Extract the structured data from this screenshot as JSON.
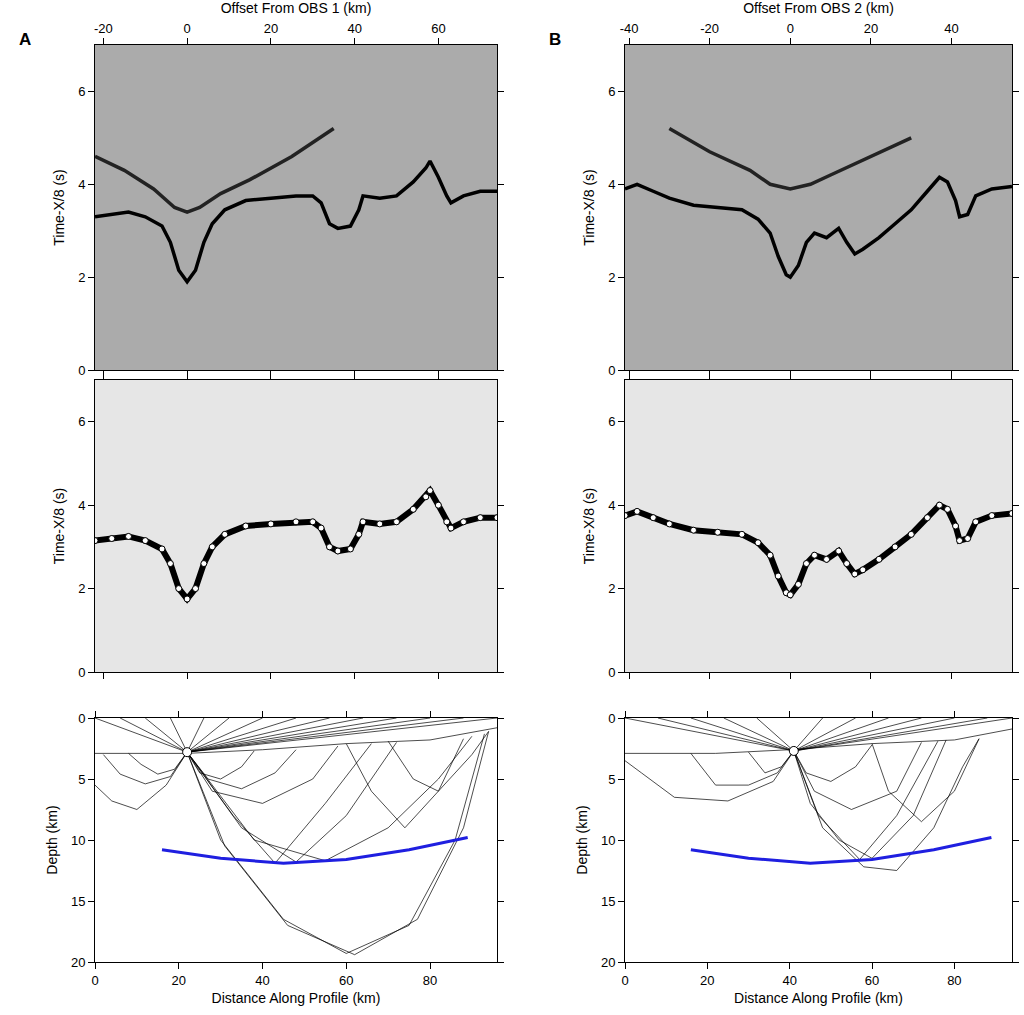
{
  "chart_data": [
    {
      "type": "line",
      "title": "A",
      "x_label": "Offset From OBS 1 (km)",
      "y_label": "Time-X/8 (s)",
      "xlim": [
        -22,
        74
      ],
      "xticks": [
        -20,
        0,
        20,
        40,
        60
      ],
      "ylim": [
        0,
        7
      ],
      "yticks": [
        0,
        2,
        4,
        6
      ],
      "series": [
        {
          "color": "#000000",
          "line_style": "solid",
          "x": [
            -22,
            -18,
            -14,
            -10,
            -6,
            -4,
            -2,
            0,
            2,
            4,
            6,
            9,
            14,
            20,
            26,
            30,
            32,
            34,
            36,
            39,
            41,
            42,
            46,
            50,
            54,
            57,
            58,
            60,
            62,
            63,
            66,
            70,
            74
          ],
          "values": [
            3.3,
            3.35,
            3.4,
            3.3,
            3.1,
            2.75,
            2.15,
            1.9,
            2.15,
            2.75,
            3.15,
            3.45,
            3.65,
            3.7,
            3.75,
            3.75,
            3.6,
            3.15,
            3.05,
            3.1,
            3.45,
            3.75,
            3.7,
            3.75,
            4.05,
            4.35,
            4.5,
            4.15,
            3.75,
            3.6,
            3.75,
            3.85,
            3.85
          ]
        },
        {
          "color": "#222222",
          "line_style": "solid",
          "x": [
            -22,
            -15,
            -8,
            -3,
            0,
            3,
            8,
            15,
            25,
            35
          ],
          "values": [
            4.6,
            4.3,
            3.9,
            3.5,
            3.4,
            3.5,
            3.8,
            4.1,
            4.6,
            5.2
          ]
        }
      ]
    },
    {
      "type": "line",
      "x_label": null,
      "y_label": "Time-X/8 (s)",
      "tick_labels": "y",
      "xlim": [
        -22,
        74
      ],
      "xticks": [
        -20,
        0,
        20,
        40,
        60
      ],
      "ylim": [
        0,
        7
      ],
      "yticks": [
        0,
        2,
        4,
        6
      ],
      "series": [
        {
          "color": "#000000",
          "line_style": "solid",
          "marker": "circle",
          "x": [
            -22,
            -18,
            -14,
            -10,
            -6,
            -4,
            -2,
            0,
            2,
            4,
            6,
            9,
            14,
            20,
            26,
            30,
            32,
            34,
            36,
            39,
            41,
            42,
            46,
            50,
            54,
            57,
            58,
            60,
            62,
            63,
            66,
            70,
            74
          ],
          "values": [
            3.15,
            3.2,
            3.25,
            3.15,
            2.95,
            2.6,
            2.0,
            1.75,
            2.0,
            2.6,
            3.0,
            3.3,
            3.5,
            3.55,
            3.6,
            3.6,
            3.45,
            3.0,
            2.9,
            2.95,
            3.3,
            3.6,
            3.55,
            3.6,
            3.9,
            4.2,
            4.35,
            4.0,
            3.6,
            3.45,
            3.6,
            3.7,
            3.7
          ]
        }
      ]
    },
    {
      "type": "line",
      "x_label": "Distance Along Profile (km)",
      "y_label": "Depth (km)",
      "xlim": [
        0,
        96
      ],
      "xticks": [
        0,
        20,
        40,
        60,
        80
      ],
      "ylim": [
        20,
        0
      ],
      "yticks": [
        0,
        5,
        10,
        15,
        20
      ],
      "series": [
        {
          "color": "#000000",
          "line_style": "solid",
          "x": [
            22,
            0,
            null,
            22,
            6,
            null,
            22,
            12,
            null,
            22,
            18,
            null,
            22,
            26,
            null,
            22,
            32,
            null,
            22,
            40,
            null,
            22,
            48,
            null,
            22,
            56,
            null,
            22,
            64,
            null,
            22,
            72,
            null,
            22,
            80,
            null,
            22,
            88,
            null,
            22,
            96,
            null,
            22,
            18,
            12,
            6,
            2,
            null,
            22,
            19,
            15,
            11,
            8,
            null,
            22,
            17,
            10,
            4,
            0,
            null,
            22,
            25,
            30,
            35,
            38,
            null,
            22,
            27,
            35,
            43,
            48,
            null,
            22,
            28,
            40,
            52,
            58,
            null,
            22,
            33,
            43,
            55,
            66,
            null,
            22,
            35,
            48,
            60,
            72,
            null,
            22,
            30,
            45,
            60,
            75,
            86,
            93,
            null,
            22,
            31,
            46,
            62,
            77,
            88,
            94,
            null,
            22,
            38,
            55,
            70,
            82,
            90,
            null,
            60,
            66,
            74,
            82,
            88,
            null,
            70,
            76,
            82,
            90,
            94
          ],
          "values": [
            2.8,
            0,
            null,
            2.8,
            0,
            null,
            2.8,
            0,
            null,
            2.8,
            0,
            null,
            2.8,
            0,
            null,
            2.8,
            0,
            null,
            2.8,
            0,
            null,
            2.8,
            0,
            null,
            2.8,
            0,
            null,
            2.8,
            0,
            null,
            2.8,
            0,
            null,
            2.8,
            0,
            null,
            2.8,
            0,
            null,
            2.8,
            0,
            null,
            2.8,
            4.8,
            5.4,
            4.6,
            3.0,
            null,
            2.8,
            4.2,
            4.6,
            3.8,
            2.9,
            null,
            2.8,
            5.5,
            7.5,
            6.8,
            5.5,
            null,
            2.8,
            4.5,
            5.0,
            4.0,
            2.7,
            null,
            2.8,
            5.0,
            5.8,
            4.5,
            2.6,
            null,
            2.8,
            6.0,
            7.0,
            5.0,
            2.3,
            null,
            2.8,
            8,
            11.9,
            7,
            2.1,
            null,
            2.8,
            9,
            11.8,
            8,
            2.0,
            null,
            2.8,
            10,
            16.5,
            19.3,
            17,
            10,
            1.3,
            null,
            2.8,
            10.5,
            17,
            19.4,
            16.5,
            9,
            1.1,
            null,
            2.8,
            10,
            11.7,
            9,
            5,
            1.5,
            null,
            2.1,
            6,
            9,
            6,
            1.7,
            null,
            1.9,
            5,
            6,
            3,
            1.1
          ]
        },
        {
          "color": "#000000",
          "line_style": "solid",
          "x": [
            0,
            22,
            40,
            60,
            80,
            96
          ],
          "values": [
            2.9,
            2.9,
            2.6,
            2.1,
            1.8,
            0.8
          ]
        },
        {
          "color": "#1f1fe0",
          "line_style": "solid",
          "x": [
            16,
            30,
            45,
            60,
            75,
            89
          ],
          "values": [
            10.8,
            11.5,
            11.9,
            11.6,
            10.8,
            9.8
          ]
        },
        {
          "color": "#ffffff",
          "marker": "circle",
          "x": [
            22
          ],
          "values": [
            2.8
          ]
        }
      ]
    },
    {
      "type": "line",
      "title": "B",
      "x_label": "Offset From OBS 2 (km)",
      "y_label": "Time-X/8 (s)",
      "xlim": [
        -41,
        55
      ],
      "xticks": [
        -40,
        -20,
        0,
        20,
        40
      ],
      "ylim": [
        0,
        7
      ],
      "yticks": [
        0,
        2,
        4,
        6
      ],
      "series": [
        {
          "color": "#000000",
          "line_style": "solid",
          "x": [
            -41,
            -38,
            -34,
            -30,
            -24,
            -18,
            -12,
            -8,
            -5,
            -3,
            -1,
            0,
            2,
            4,
            6,
            9,
            12,
            14,
            16,
            18,
            22,
            26,
            30,
            34,
            37,
            39,
            41,
            42,
            44,
            46,
            50,
            55
          ],
          "values": [
            3.9,
            4.0,
            3.85,
            3.7,
            3.55,
            3.5,
            3.45,
            3.25,
            2.95,
            2.45,
            2.05,
            2.0,
            2.25,
            2.75,
            2.95,
            2.85,
            3.05,
            2.75,
            2.5,
            2.6,
            2.85,
            3.15,
            3.45,
            3.85,
            4.15,
            4.05,
            3.65,
            3.3,
            3.35,
            3.75,
            3.9,
            3.95
          ]
        },
        {
          "color": "#222222",
          "line_style": "solid",
          "x": [
            -30,
            -20,
            -10,
            -5,
            0,
            5,
            10,
            20,
            30
          ],
          "values": [
            5.2,
            4.7,
            4.3,
            4.0,
            3.9,
            4.0,
            4.2,
            4.6,
            5.0
          ]
        }
      ]
    },
    {
      "type": "line",
      "x_label": null,
      "y_label": "Time-X/8 (s)",
      "tick_labels": "y",
      "xlim": [
        -41,
        55
      ],
      "xticks": [
        -40,
        -20,
        0,
        20,
        40
      ],
      "ylim": [
        0,
        7
      ],
      "yticks": [
        0,
        2,
        4,
        6
      ],
      "series": [
        {
          "color": "#000000",
          "line_style": "solid",
          "marker": "circle",
          "x": [
            -41,
            -38,
            -34,
            -30,
            -24,
            -18,
            -12,
            -8,
            -5,
            -3,
            -1,
            0,
            2,
            4,
            6,
            9,
            12,
            14,
            16,
            18,
            22,
            26,
            30,
            34,
            37,
            39,
            41,
            42,
            44,
            46,
            50,
            55
          ],
          "values": [
            3.75,
            3.85,
            3.7,
            3.55,
            3.4,
            3.35,
            3.3,
            3.1,
            2.8,
            2.3,
            1.9,
            1.85,
            2.1,
            2.6,
            2.8,
            2.7,
            2.9,
            2.6,
            2.35,
            2.45,
            2.7,
            3.0,
            3.3,
            3.7,
            4.0,
            3.9,
            3.5,
            3.15,
            3.2,
            3.6,
            3.75,
            3.8
          ]
        }
      ]
    },
    {
      "type": "line",
      "x_label": "Distance Along Profile (km)",
      "y_label": "Depth (km)",
      "xlim": [
        0,
        94
      ],
      "xticks": [
        0,
        20,
        40,
        60,
        80
      ],
      "ylim": [
        20,
        0
      ],
      "yticks": [
        0,
        5,
        10,
        15,
        20
      ],
      "series": [
        {
          "color": "#000000",
          "line_style": "solid",
          "x": [
            41,
            0,
            null,
            41,
            8,
            null,
            41,
            16,
            null,
            41,
            24,
            null,
            41,
            32,
            null,
            41,
            48,
            null,
            41,
            56,
            null,
            41,
            64,
            null,
            41,
            72,
            null,
            41,
            80,
            null,
            41,
            88,
            null,
            41,
            94,
            null,
            41,
            37,
            30,
            22,
            16,
            null,
            41,
            36,
            25,
            12,
            4,
            0,
            null,
            41,
            38,
            34,
            30,
            null,
            41,
            44,
            50,
            56,
            60,
            null,
            41,
            46,
            55,
            66,
            72,
            null,
            41,
            47,
            57,
            66,
            76,
            null,
            41,
            48,
            58,
            66,
            75,
            82,
            86,
            null,
            41,
            45,
            52,
            60,
            70,
            78,
            null,
            60,
            64,
            72,
            80,
            86
          ],
          "values": [
            2.7,
            0,
            null,
            2.7,
            0,
            null,
            2.7,
            0,
            null,
            2.7,
            0,
            null,
            2.7,
            0,
            null,
            2.7,
            0,
            null,
            2.7,
            0,
            null,
            2.7,
            0,
            null,
            2.7,
            0,
            null,
            2.7,
            0,
            null,
            2.7,
            0,
            null,
            2.7,
            0,
            null,
            2.7,
            4.5,
            5.5,
            5.5,
            2.9,
            null,
            2.7,
            5.2,
            6.8,
            6.5,
            4.5,
            3.5,
            null,
            2.7,
            4.0,
            4.5,
            2.8,
            null,
            2.7,
            4.5,
            5.2,
            4.0,
            2.2,
            null,
            2.7,
            6,
            7.5,
            6,
            2.0,
            null,
            2.7,
            8,
            11.6,
            8,
            1.9,
            null,
            2.7,
            9,
            12.2,
            12.5,
            9,
            4,
            1.7,
            null,
            2.7,
            7,
            10,
            11.5,
            8,
            1.8,
            null,
            2.1,
            6,
            8.5,
            6,
            1.7
          ]
        },
        {
          "color": "#000000",
          "line_style": "solid",
          "x": [
            0,
            22,
            40,
            60,
            80,
            94
          ],
          "values": [
            2.9,
            2.9,
            2.6,
            2.1,
            1.8,
            0.9
          ]
        },
        {
          "color": "#1f1fe0",
          "line_style": "solid",
          "x": [
            16,
            30,
            45,
            60,
            75,
            89
          ],
          "values": [
            10.8,
            11.5,
            11.9,
            11.6,
            10.8,
            9.8
          ]
        },
        {
          "color": "#ffffff",
          "marker": "circle",
          "x": [
            41
          ],
          "values": [
            2.7
          ]
        }
      ]
    }
  ]
}
